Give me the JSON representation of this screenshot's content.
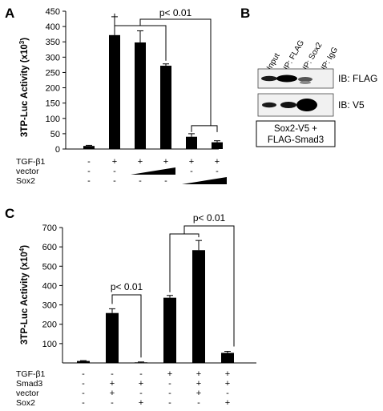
{
  "panels": [
    {
      "letter": "A"
    },
    {
      "letter": "B"
    },
    {
      "letter": "C"
    }
  ],
  "panel_b": {
    "lanes": [
      "Input",
      "IP: FLAG",
      "IP: Sox2",
      "IP: IgG"
    ],
    "blots": [
      "IB: FLAG",
      "IB: V5"
    ],
    "box_lines": [
      "Sox2-V5 +",
      "FLAG-Smad3"
    ]
  },
  "chart_data": [
    {
      "type": "bar",
      "panel": "A",
      "title": "",
      "xlabel": "",
      "ylabel": "3TP-Luc Activity (x10",
      "ylabel_exp": "3",
      "ylabel_close": ")",
      "ylim": [
        0,
        450
      ],
      "yticks": [
        0,
        50,
        100,
        150,
        200,
        250,
        300,
        350,
        400,
        450
      ],
      "grid": false,
      "values": [
        10,
        372,
        348,
        272,
        40,
        22
      ],
      "errors": [
        2,
        60,
        38,
        6,
        10,
        5
      ],
      "significance": [
        {
          "label": "p< 0.01"
        }
      ],
      "conditions": [
        {
          "label": "TGF-β1",
          "cells": [
            "-",
            "+",
            "+",
            "+",
            "+",
            "+"
          ]
        },
        {
          "label": "vector",
          "cells": [
            "-",
            "-",
            "",
            "",
            "-",
            "-"
          ],
          "ramp": [
            2,
            3
          ]
        },
        {
          "label": "Sox2",
          "cells": [
            "-",
            "-",
            "-",
            "-",
            "",
            ""
          ],
          "ramp": [
            4,
            5
          ]
        }
      ]
    },
    {
      "type": "bar",
      "panel": "C",
      "title": "",
      "xlabel": "",
      "ylabel": "3TP-Luc Activity (x10",
      "ylabel_exp": "4",
      "ylabel_close": ")",
      "ylim": [
        0,
        700
      ],
      "yticks": [
        100,
        200,
        300,
        400,
        500,
        600,
        700
      ],
      "grid": false,
      "values": [
        10,
        258,
        3,
        337,
        583,
        52
      ],
      "errors": [
        2,
        22,
        2,
        12,
        50,
        8
      ],
      "significance": [
        {
          "label": "p< 0.01"
        },
        {
          "label": "p< 0.01"
        }
      ],
      "conditions": [
        {
          "label": "TGF-β1",
          "cells": [
            "-",
            "-",
            "-",
            "+",
            "+",
            "+"
          ]
        },
        {
          "label": "Smad3",
          "cells": [
            "-",
            "+",
            "+",
            "-",
            "+",
            "+"
          ]
        },
        {
          "label": "vector",
          "cells": [
            "-",
            "+",
            "-",
            "-",
            "+",
            "-"
          ]
        },
        {
          "label": "Sox2",
          "cells": [
            "-",
            "-",
            "+",
            "-",
            "-",
            "+"
          ]
        }
      ]
    }
  ]
}
